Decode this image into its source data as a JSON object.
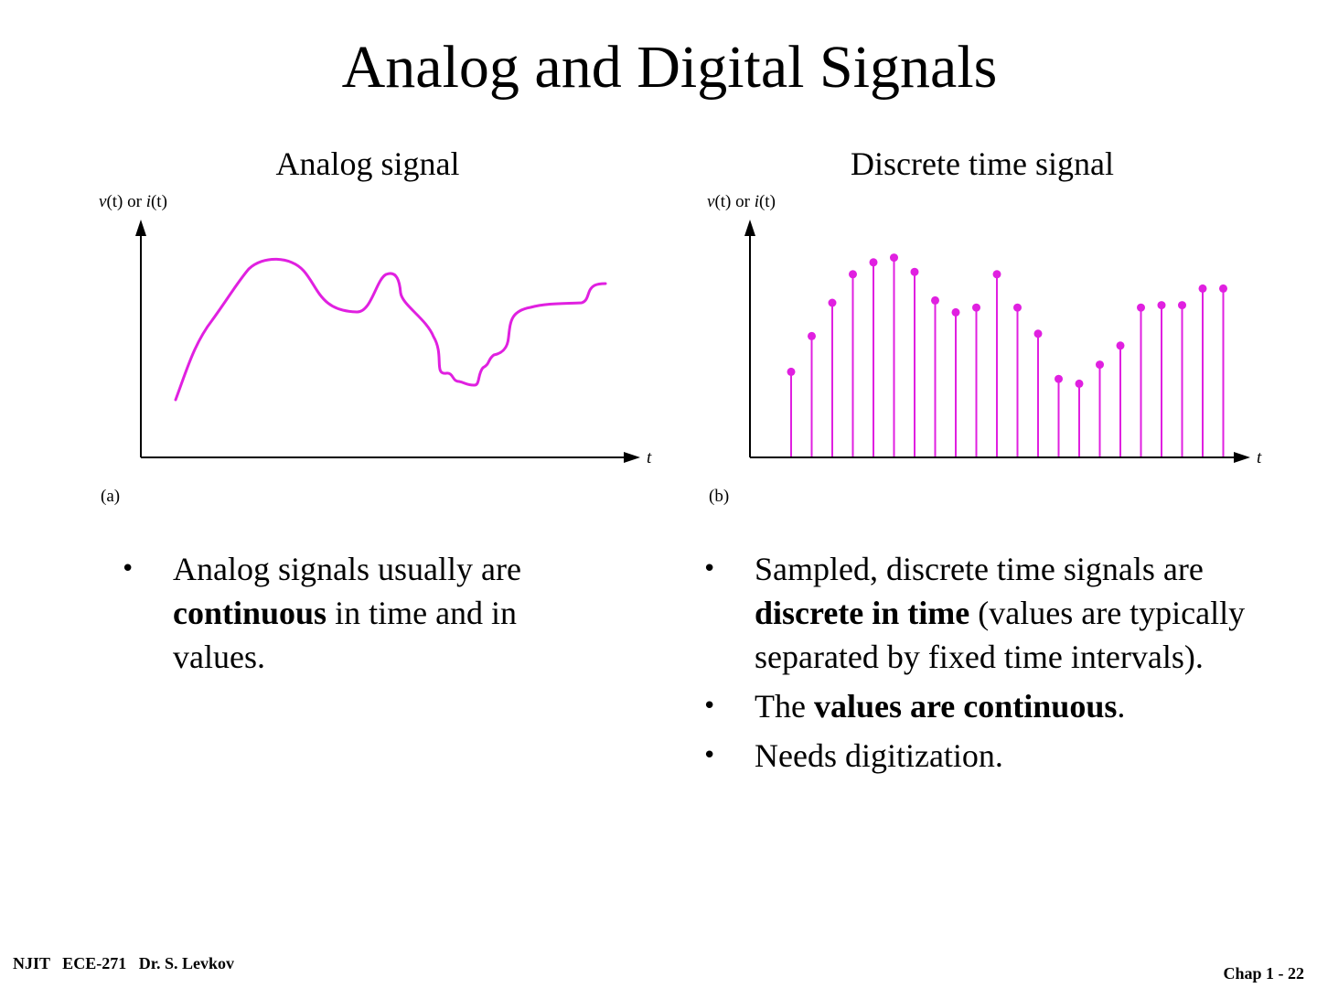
{
  "slide": {
    "title": "Analog and Digital Signals"
  },
  "left": {
    "caption": "Analog signal",
    "y_axis_label_v": "v",
    "y_axis_label_t1": "(t)",
    "y_axis_label_or": " or ",
    "y_axis_label_i": "i",
    "y_axis_label_t2": "(t)",
    "x_axis_label": "t",
    "panel_label": "(a)",
    "bullets": [
      {
        "before": "Analog signals usually are ",
        "bold": "continuous",
        "after": " in time and in values."
      }
    ]
  },
  "right": {
    "caption": "Discrete time signal",
    "y_axis_label_v": "v",
    "y_axis_label_t1": "(t)",
    "y_axis_label_or": " or ",
    "y_axis_label_i": "i",
    "y_axis_label_t2": "(t)",
    "x_axis_label": "t",
    "panel_label": "(b)",
    "bullets": [
      {
        "before": "Sampled, discrete time signals are ",
        "bold": "discrete in time",
        "after": " (values are typically separated by fixed time intervals)."
      },
      {
        "before": "The ",
        "bold": "values are continuous",
        "after": "."
      },
      {
        "before": "Needs digitization.",
        "bold": "",
        "after": ""
      }
    ]
  },
  "footer": {
    "left": "NJIT   ECE-271   Dr. S. Levkov",
    "right": "Chap 1 - 22"
  },
  "colors": {
    "signal": "#e020e0",
    "axis": "#000000"
  },
  "chart_data": [
    {
      "type": "line",
      "title": "Analog signal",
      "xlabel": "t",
      "ylabel": "v(t) or i(t)",
      "grid": false,
      "series": [
        {
          "x": [
            0.0,
            0.03,
            0.07,
            0.12,
            0.17,
            0.22,
            0.27,
            0.32,
            0.37,
            0.41,
            0.45,
            0.49,
            0.54,
            0.6,
            0.63,
            0.65,
            0.68,
            0.7,
            0.73,
            0.76,
            0.8,
            0.85,
            0.9,
            0.94,
            0.97,
            1.0
          ],
          "y": [
            0.3,
            0.47,
            0.62,
            0.72,
            0.84,
            0.88,
            0.87,
            0.79,
            0.72,
            0.72,
            0.79,
            0.8,
            0.7,
            0.57,
            0.42,
            0.41,
            0.4,
            0.39,
            0.46,
            0.49,
            0.61,
            0.65,
            0.66,
            0.66,
            0.71,
            0.72
          ]
        }
      ]
    },
    {
      "type": "stem",
      "title": "Discrete time signal",
      "xlabel": "t",
      "ylabel": "v(t) or i(t)",
      "grid": false,
      "series": [
        {
          "x": [
            1,
            2,
            3,
            4,
            5,
            6,
            7,
            8,
            9,
            10,
            11,
            12,
            13,
            14,
            15,
            16,
            17,
            18,
            19,
            20,
            21,
            22
          ],
          "y": [
            0.36,
            0.51,
            0.65,
            0.77,
            0.82,
            0.84,
            0.78,
            0.66,
            0.61,
            0.63,
            0.77,
            0.63,
            0.52,
            0.33,
            0.31,
            0.39,
            0.47,
            0.63,
            0.64,
            0.64,
            0.71,
            0.71
          ]
        }
      ]
    }
  ]
}
